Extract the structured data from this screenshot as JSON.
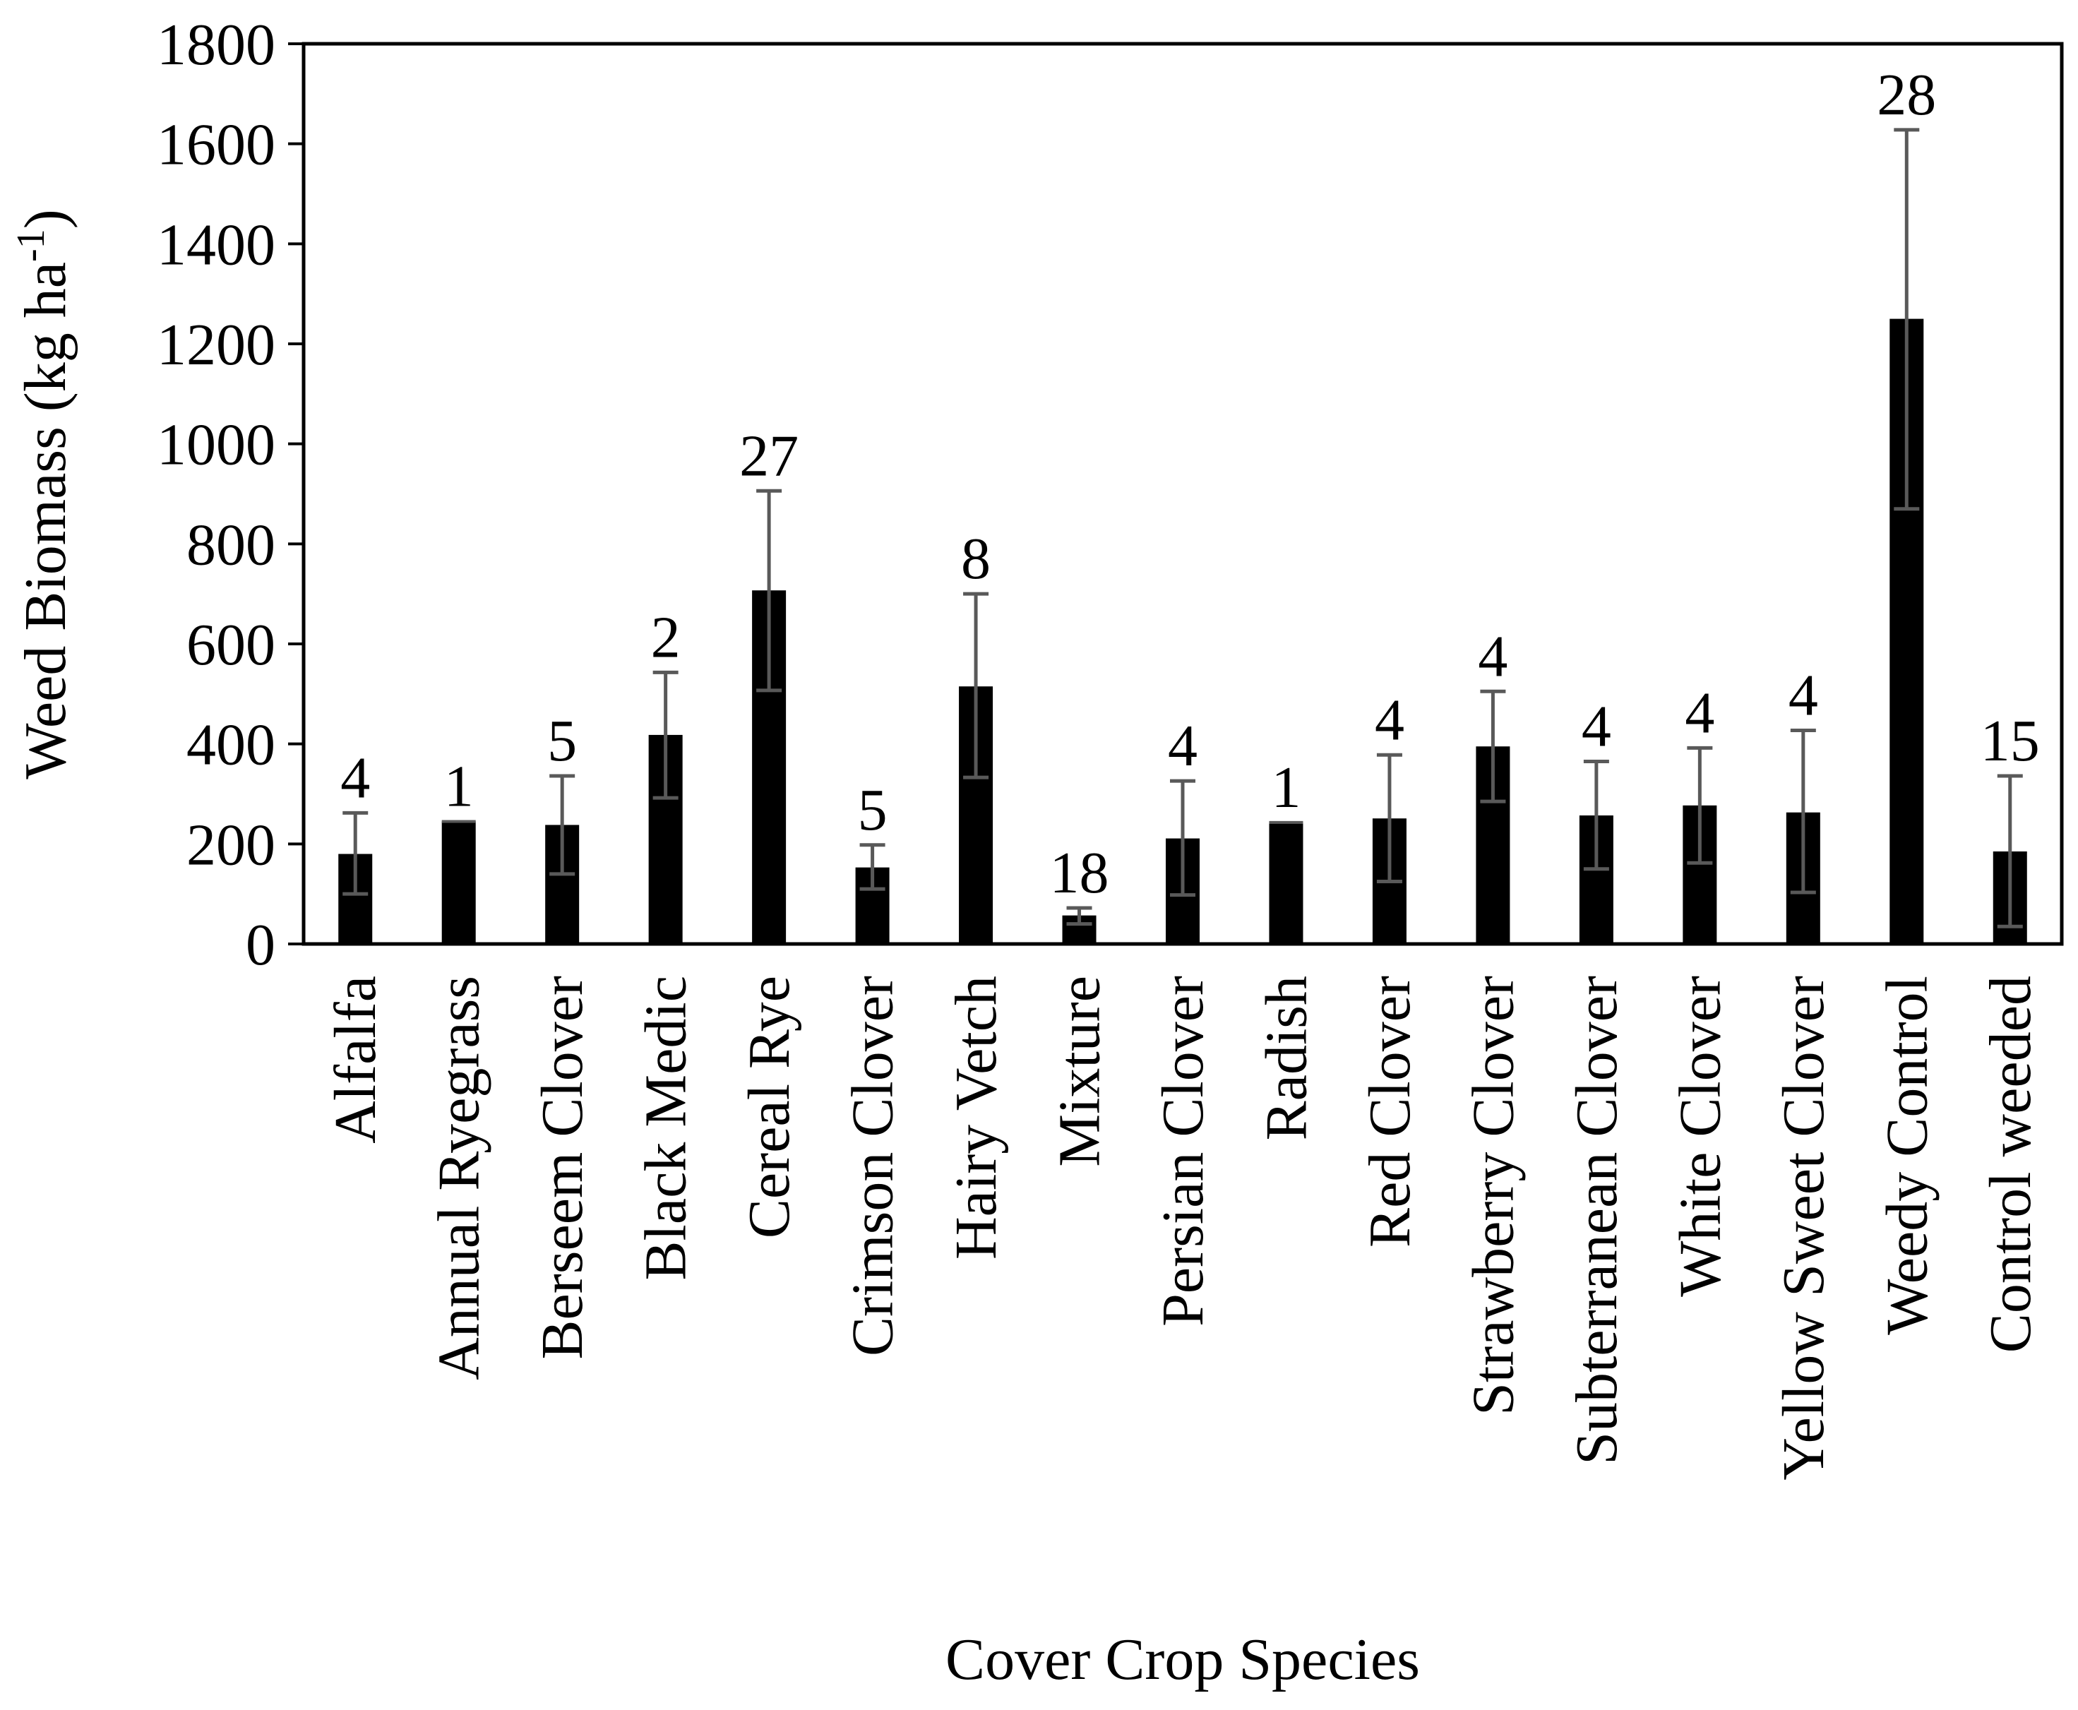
{
  "chart_data": {
    "type": "bar",
    "title": "",
    "xlabel": "Cover Crop Species",
    "ylabel": "Weed Biomass (kg ha",
    "ylabel_superscript": "-1",
    "ylabel_close": ")",
    "ylim": [
      0,
      1800
    ],
    "yticks": [
      "0",
      "200",
      "400",
      "600",
      "800",
      "1000",
      "1200",
      "1400",
      "1600",
      "1800"
    ],
    "categories": [
      "Alfalfa",
      "Annual Ryegrass",
      "Berseem Clover",
      "Black Medic",
      "Cereal Rye",
      "Crimson Clover",
      "Hairy Vetch",
      "Mixture",
      "Persian Clover",
      "Radish",
      "Red Clover",
      "Strawberry Clover",
      "Subterranean Clover",
      "White Clover",
      "Yellow Sweet Clover",
      "Weedy Control",
      "Control weeded"
    ],
    "values": [
      180,
      245,
      238,
      418,
      707,
      153,
      515,
      57,
      211,
      243,
      251,
      395,
      257,
      277,
      263,
      1250,
      185
    ],
    "error_low": [
      100,
      245,
      140,
      292,
      507,
      110,
      333,
      40,
      98,
      243,
      125,
      285,
      150,
      162,
      103,
      870,
      35
    ],
    "error_high": [
      262,
      245,
      336,
      543,
      906,
      198,
      700,
      72,
      326,
      243,
      378,
      505,
      365,
      392,
      427,
      1628,
      336
    ],
    "n_labels": [
      "4",
      "1",
      "5",
      "2",
      "27",
      "5",
      "8",
      "18",
      "4",
      "1",
      "4",
      "4",
      "4",
      "4",
      "4",
      "28",
      "15"
    ],
    "grid": false,
    "legend": "none",
    "colors": {
      "bar": "#000000",
      "error_bar": "#595959",
      "axis": "#000000",
      "background": "#ffffff"
    }
  }
}
